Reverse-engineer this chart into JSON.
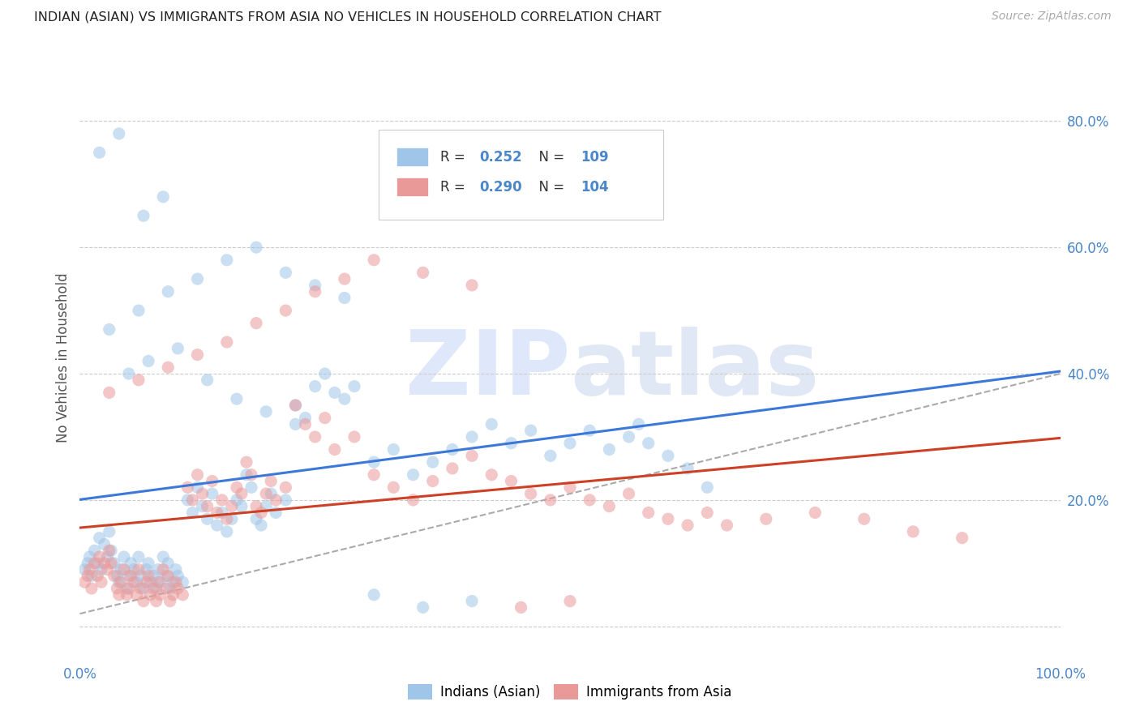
{
  "title": "INDIAN (ASIAN) VS IMMIGRANTS FROM ASIA NO VEHICLES IN HOUSEHOLD CORRELATION CHART",
  "source": "Source: ZipAtlas.com",
  "ylabel": "No Vehicles in Household",
  "xlim": [
    0.0,
    1.0
  ],
  "ylim": [
    -0.05,
    0.9
  ],
  "blue_color": "#9fc5e8",
  "blue_line_color": "#3c78d8",
  "pink_color": "#ea9999",
  "pink_line_color": "#cc4125",
  "scatter_alpha": 0.55,
  "scatter_size": 120,
  "legend_R1": "0.252",
  "legend_N1": "109",
  "legend_R2": "0.290",
  "legend_N2": "104",
  "watermark_text": "ZIPatlas",
  "blue_scatter_x": [
    0.005,
    0.008,
    0.01,
    0.012,
    0.015,
    0.018,
    0.02,
    0.022,
    0.025,
    0.028,
    0.03,
    0.032,
    0.035,
    0.038,
    0.04,
    0.042,
    0.045,
    0.048,
    0.05,
    0.052,
    0.055,
    0.058,
    0.06,
    0.062,
    0.065,
    0.068,
    0.07,
    0.072,
    0.075,
    0.078,
    0.08,
    0.082,
    0.085,
    0.088,
    0.09,
    0.092,
    0.095,
    0.098,
    0.1,
    0.105,
    0.11,
    0.115,
    0.12,
    0.125,
    0.13,
    0.135,
    0.14,
    0.145,
    0.15,
    0.155,
    0.16,
    0.165,
    0.17,
    0.175,
    0.18,
    0.185,
    0.19,
    0.195,
    0.2,
    0.21,
    0.22,
    0.23,
    0.24,
    0.25,
    0.26,
    0.27,
    0.28,
    0.3,
    0.32,
    0.34,
    0.36,
    0.38,
    0.4,
    0.42,
    0.44,
    0.46,
    0.48,
    0.5,
    0.52,
    0.54,
    0.56,
    0.57,
    0.58,
    0.6,
    0.62,
    0.64,
    0.05,
    0.07,
    0.1,
    0.13,
    0.16,
    0.19,
    0.22,
    0.03,
    0.06,
    0.09,
    0.12,
    0.15,
    0.18,
    0.21,
    0.24,
    0.27,
    0.3,
    0.35,
    0.4,
    0.02,
    0.04,
    0.065,
    0.085
  ],
  "blue_scatter_y": [
    0.09,
    0.1,
    0.11,
    0.08,
    0.12,
    0.1,
    0.14,
    0.09,
    0.13,
    0.11,
    0.15,
    0.12,
    0.1,
    0.08,
    0.07,
    0.09,
    0.11,
    0.06,
    0.08,
    0.1,
    0.09,
    0.07,
    0.11,
    0.08,
    0.06,
    0.09,
    0.1,
    0.07,
    0.08,
    0.06,
    0.09,
    0.07,
    0.11,
    0.08,
    0.1,
    0.06,
    0.07,
    0.09,
    0.08,
    0.07,
    0.2,
    0.18,
    0.22,
    0.19,
    0.17,
    0.21,
    0.16,
    0.18,
    0.15,
    0.17,
    0.2,
    0.19,
    0.24,
    0.22,
    0.17,
    0.16,
    0.19,
    0.21,
    0.18,
    0.2,
    0.35,
    0.33,
    0.38,
    0.4,
    0.37,
    0.36,
    0.38,
    0.26,
    0.28,
    0.24,
    0.26,
    0.28,
    0.3,
    0.32,
    0.29,
    0.31,
    0.27,
    0.29,
    0.31,
    0.28,
    0.3,
    0.32,
    0.29,
    0.27,
    0.25,
    0.22,
    0.4,
    0.42,
    0.44,
    0.39,
    0.36,
    0.34,
    0.32,
    0.47,
    0.5,
    0.53,
    0.55,
    0.58,
    0.6,
    0.56,
    0.54,
    0.52,
    0.05,
    0.03,
    0.04,
    0.75,
    0.78,
    0.65,
    0.68
  ],
  "pink_scatter_x": [
    0.005,
    0.008,
    0.01,
    0.012,
    0.015,
    0.018,
    0.02,
    0.022,
    0.025,
    0.028,
    0.03,
    0.032,
    0.035,
    0.038,
    0.04,
    0.042,
    0.045,
    0.048,
    0.05,
    0.052,
    0.055,
    0.058,
    0.06,
    0.062,
    0.065,
    0.068,
    0.07,
    0.072,
    0.075,
    0.078,
    0.08,
    0.082,
    0.085,
    0.088,
    0.09,
    0.092,
    0.095,
    0.098,
    0.1,
    0.105,
    0.11,
    0.115,
    0.12,
    0.125,
    0.13,
    0.135,
    0.14,
    0.145,
    0.15,
    0.155,
    0.16,
    0.165,
    0.17,
    0.175,
    0.18,
    0.185,
    0.19,
    0.195,
    0.2,
    0.21,
    0.22,
    0.23,
    0.24,
    0.25,
    0.26,
    0.28,
    0.3,
    0.32,
    0.34,
    0.36,
    0.38,
    0.4,
    0.42,
    0.44,
    0.46,
    0.48,
    0.5,
    0.52,
    0.54,
    0.56,
    0.58,
    0.6,
    0.62,
    0.64,
    0.66,
    0.7,
    0.75,
    0.8,
    0.85,
    0.9,
    0.03,
    0.06,
    0.09,
    0.12,
    0.15,
    0.18,
    0.21,
    0.24,
    0.27,
    0.3,
    0.35,
    0.4,
    0.45,
    0.5
  ],
  "pink_scatter_y": [
    0.07,
    0.08,
    0.09,
    0.06,
    0.1,
    0.08,
    0.11,
    0.07,
    0.1,
    0.09,
    0.12,
    0.1,
    0.08,
    0.06,
    0.05,
    0.07,
    0.09,
    0.05,
    0.06,
    0.08,
    0.07,
    0.05,
    0.09,
    0.06,
    0.04,
    0.07,
    0.08,
    0.05,
    0.06,
    0.04,
    0.07,
    0.05,
    0.09,
    0.06,
    0.08,
    0.04,
    0.05,
    0.07,
    0.06,
    0.05,
    0.22,
    0.2,
    0.24,
    0.21,
    0.19,
    0.23,
    0.18,
    0.2,
    0.17,
    0.19,
    0.22,
    0.21,
    0.26,
    0.24,
    0.19,
    0.18,
    0.21,
    0.23,
    0.2,
    0.22,
    0.35,
    0.32,
    0.3,
    0.33,
    0.28,
    0.3,
    0.24,
    0.22,
    0.2,
    0.23,
    0.25,
    0.27,
    0.24,
    0.23,
    0.21,
    0.2,
    0.22,
    0.2,
    0.19,
    0.21,
    0.18,
    0.17,
    0.16,
    0.18,
    0.16,
    0.17,
    0.18,
    0.17,
    0.15,
    0.14,
    0.37,
    0.39,
    0.41,
    0.43,
    0.45,
    0.48,
    0.5,
    0.53,
    0.55,
    0.58,
    0.56,
    0.54,
    0.03,
    0.04
  ]
}
